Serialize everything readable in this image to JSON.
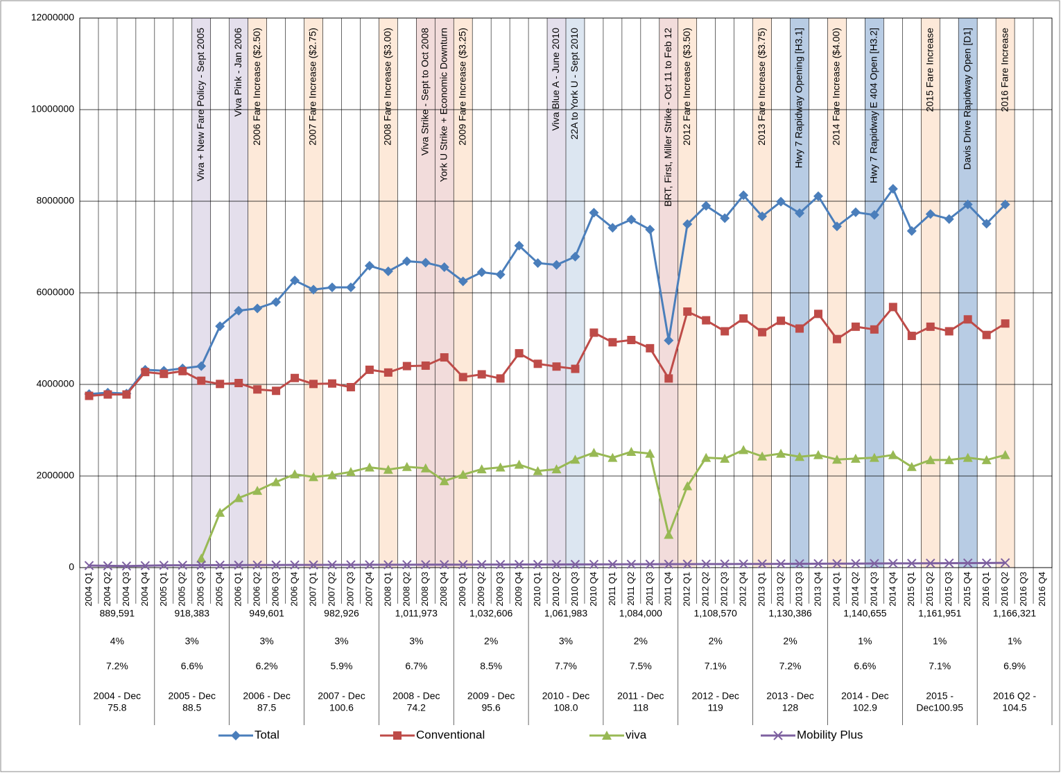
{
  "chart_data": {
    "type": "line",
    "categories": [
      "2004 Q1",
      "2004 Q2",
      "2004 Q3",
      "2004 Q4",
      "2005 Q1",
      "2005 Q2",
      "2005 Q3",
      "2005 Q4",
      "2006 Q1",
      "2006 Q2",
      "2006 Q3",
      "2006 Q4",
      "2007 Q1",
      "2007 Q2",
      "2007 Q3",
      "2007 Q4",
      "2008 Q1",
      "2008 Q2",
      "2008 Q3",
      "2008 Q4",
      "2009 Q1",
      "2009 Q2",
      "2009 Q3",
      "2009 Q4",
      "2010 Q1",
      "2010 Q2",
      "2010 Q3",
      "2010 Q4",
      "2011 Q1",
      "2011 Q2",
      "2011 Q3",
      "2011 Q4",
      "2012 Q1",
      "2012 Q2",
      "2012 Q3",
      "2012 Q4",
      "2013 Q1",
      "2013 Q2",
      "2013 Q3",
      "2013 Q4",
      "2014 Q1",
      "2014 Q2",
      "2014 Q3",
      "2014 Q4",
      "2015 Q1",
      "2015 Q2",
      "2015 Q3",
      "2015 Q4",
      "2016 Q1",
      "2016 Q2",
      "2016 Q3",
      "2016 Q4"
    ],
    "series": [
      {
        "name": "Total",
        "color": "#4a7ebb",
        "marker": "diamond",
        "values": [
          3790000,
          3820000,
          3800000,
          4320000,
          4300000,
          4350000,
          4400000,
          5270000,
          5610000,
          5660000,
          5800000,
          6270000,
          6070000,
          6120000,
          6120000,
          6590000,
          6470000,
          6690000,
          6660000,
          6560000,
          6250000,
          6450000,
          6400000,
          7030000,
          6650000,
          6610000,
          6790000,
          7750000,
          7420000,
          7600000,
          7380000,
          4960000,
          7500000,
          7900000,
          7630000,
          8130000,
          7670000,
          7990000,
          7740000,
          8110000,
          7450000,
          7760000,
          7700000,
          8270000,
          7350000,
          7720000,
          7610000,
          7930000,
          7510000,
          7930000,
          null,
          null
        ]
      },
      {
        "name": "Conventional",
        "color": "#be4b48",
        "marker": "square",
        "values": [
          3750000,
          3780000,
          3780000,
          4270000,
          4230000,
          4290000,
          4080000,
          4010000,
          4030000,
          3890000,
          3860000,
          4140000,
          4010000,
          4020000,
          3940000,
          4320000,
          4260000,
          4400000,
          4410000,
          4590000,
          4160000,
          4220000,
          4130000,
          4680000,
          4450000,
          4390000,
          4340000,
          5130000,
          4920000,
          4970000,
          4790000,
          4130000,
          5590000,
          5400000,
          5160000,
          5440000,
          5140000,
          5390000,
          5220000,
          5540000,
          4990000,
          5260000,
          5200000,
          5690000,
          5060000,
          5260000,
          5160000,
          5420000,
          5080000,
          5330000,
          null,
          null
        ]
      },
      {
        "name": "viva",
        "color": "#98b954",
        "marker": "triangle",
        "values": [
          null,
          null,
          null,
          null,
          null,
          null,
          200000,
          1200000,
          1520000,
          1680000,
          1870000,
          2040000,
          1980000,
          2020000,
          2090000,
          2190000,
          2140000,
          2200000,
          2170000,
          1890000,
          2030000,
          2150000,
          2190000,
          2250000,
          2110000,
          2150000,
          2360000,
          2510000,
          2400000,
          2530000,
          2490000,
          720000,
          1780000,
          2400000,
          2380000,
          2570000,
          2430000,
          2490000,
          2420000,
          2460000,
          2360000,
          2380000,
          2400000,
          2460000,
          2200000,
          2350000,
          2350000,
          2400000,
          2350000,
          2460000,
          null,
          null
        ]
      },
      {
        "name": "Mobility Plus",
        "color": "#7d60a0",
        "marker": "x",
        "values": [
          45000,
          40000,
          35000,
          42000,
          50000,
          52000,
          53000,
          54000,
          55000,
          56000,
          57000,
          58000,
          59000,
          60000,
          61000,
          62000,
          62000,
          63000,
          64000,
          65000,
          65000,
          66000,
          67000,
          68000,
          68000,
          69000,
          70000,
          71000,
          72000,
          73000,
          74000,
          75000,
          76000,
          77000,
          78000,
          79000,
          80000,
          82000,
          84000,
          86000,
          87000,
          88000,
          90000,
          92000,
          93000,
          95000,
          97000,
          99000,
          100000,
          105000,
          null,
          null
        ]
      }
    ],
    "ylim": [
      0,
      12000000
    ],
    "yticks": [
      0,
      2000000,
      4000000,
      6000000,
      8000000,
      10000000,
      12000000
    ],
    "grid": true,
    "legend": "bottom",
    "annotations": [
      {
        "category": "2005 Q3",
        "text": "Viva + New Fare Policy - Sept 2005",
        "color": "#e4dfec"
      },
      {
        "category": "2006 Q1",
        "text": "Viva Pink - Jan 2006",
        "color": "#e4dfec"
      },
      {
        "category": "2006 Q2",
        "text": "2006 Fare Increase ($2.50)",
        "color": "#fde9d9"
      },
      {
        "category": "2007 Q1",
        "text": "2007 Fare Increase ($2.75)",
        "color": "#fde9d9"
      },
      {
        "category": "2008 Q1",
        "text": "2008 Fare Increase ($3.00)",
        "color": "#fde9d9"
      },
      {
        "category": "2008 Q3",
        "text": "Viva Strike - Sept to Oct 2008",
        "color": "#f2dcdb"
      },
      {
        "category": "2008 Q4",
        "text": "York U Strike + Economic Downturn",
        "color": "#f2dcdb"
      },
      {
        "category": "2009 Q1",
        "text": "2009 Fare Increase ($3.25)",
        "color": "#fde9d9"
      },
      {
        "category": "2010 Q2",
        "text": "Viva Blue A - June 2010",
        "color": "#e4dfec"
      },
      {
        "category": "2010 Q3",
        "text": "22A to York U - Sept 2010",
        "color": "#dce6f1"
      },
      {
        "category": "2011 Q4",
        "text": "BRT, First, Miller Strike - Oct 11 to Feb 12",
        "color": "#f2dcdb"
      },
      {
        "category": "2012 Q1",
        "text": "2012 Fare Increase ($3.50)",
        "color": "#fde9d9"
      },
      {
        "category": "2013 Q1",
        "text": "2013 Fare Increase ($3.75)",
        "color": "#fde9d9"
      },
      {
        "category": "2013 Q3",
        "text": "Hwy 7 Rapidway Opening [H3.1]",
        "color": "#b8cce4"
      },
      {
        "category": "2014 Q1",
        "text": "2014 Fare Increase ($4.00)",
        "color": "#fde9d9"
      },
      {
        "category": "2014 Q3",
        "text": "Hwy 7 Rapidway E 404 Open [H3.2]",
        "color": "#b8cce4"
      },
      {
        "category": "2015 Q2",
        "text": "2015 Fare Increase",
        "color": "#fde9d9"
      },
      {
        "category": "2015 Q4",
        "text": "Davis Drive Rapidway Open [D1]",
        "color": "#b8cce4"
      },
      {
        "category": "2016 Q2",
        "text": "2016 Fare Increase",
        "color": "#fde9d9"
      }
    ]
  },
  "table": {
    "rows": [
      [
        "889,591",
        "918,383",
        "949,601",
        "982,926",
        "1,011,973",
        "1,032,606",
        "1,061,983",
        "1,084,000",
        "1,108,570",
        "1,130,386",
        "1,140,655",
        "1,161,951",
        "1,166,321"
      ],
      [
        "4%",
        "3%",
        "3%",
        "3%",
        "3%",
        "2%",
        "3%",
        "2%",
        "2%",
        "2%",
        "1%",
        "1%",
        "1%"
      ],
      [
        "7.2%",
        "6.6%",
        "6.2%",
        "5.9%",
        "6.7%",
        "8.5%",
        "7.7%",
        "7.5%",
        "7.1%",
        "7.2%",
        "6.6%",
        "7.1%",
        "6.9%"
      ],
      [
        "2004 - Dec",
        "2005 - Dec",
        "2006 - Dec",
        "2007 - Dec",
        "2008 - Dec",
        "2009 - Dec",
        "2010 - Dec",
        "2011 - Dec",
        "2012 - Dec",
        "2013 - Dec",
        "2014 - Dec",
        "2015 -",
        "2016 Q2 -"
      ],
      [
        "75.8",
        "88.5",
        "87.5",
        "100.6",
        "74.2",
        "95.6",
        "108.0",
        "118",
        "119",
        "128",
        "102.9",
        "Dec100.95",
        "104.5"
      ]
    ]
  }
}
